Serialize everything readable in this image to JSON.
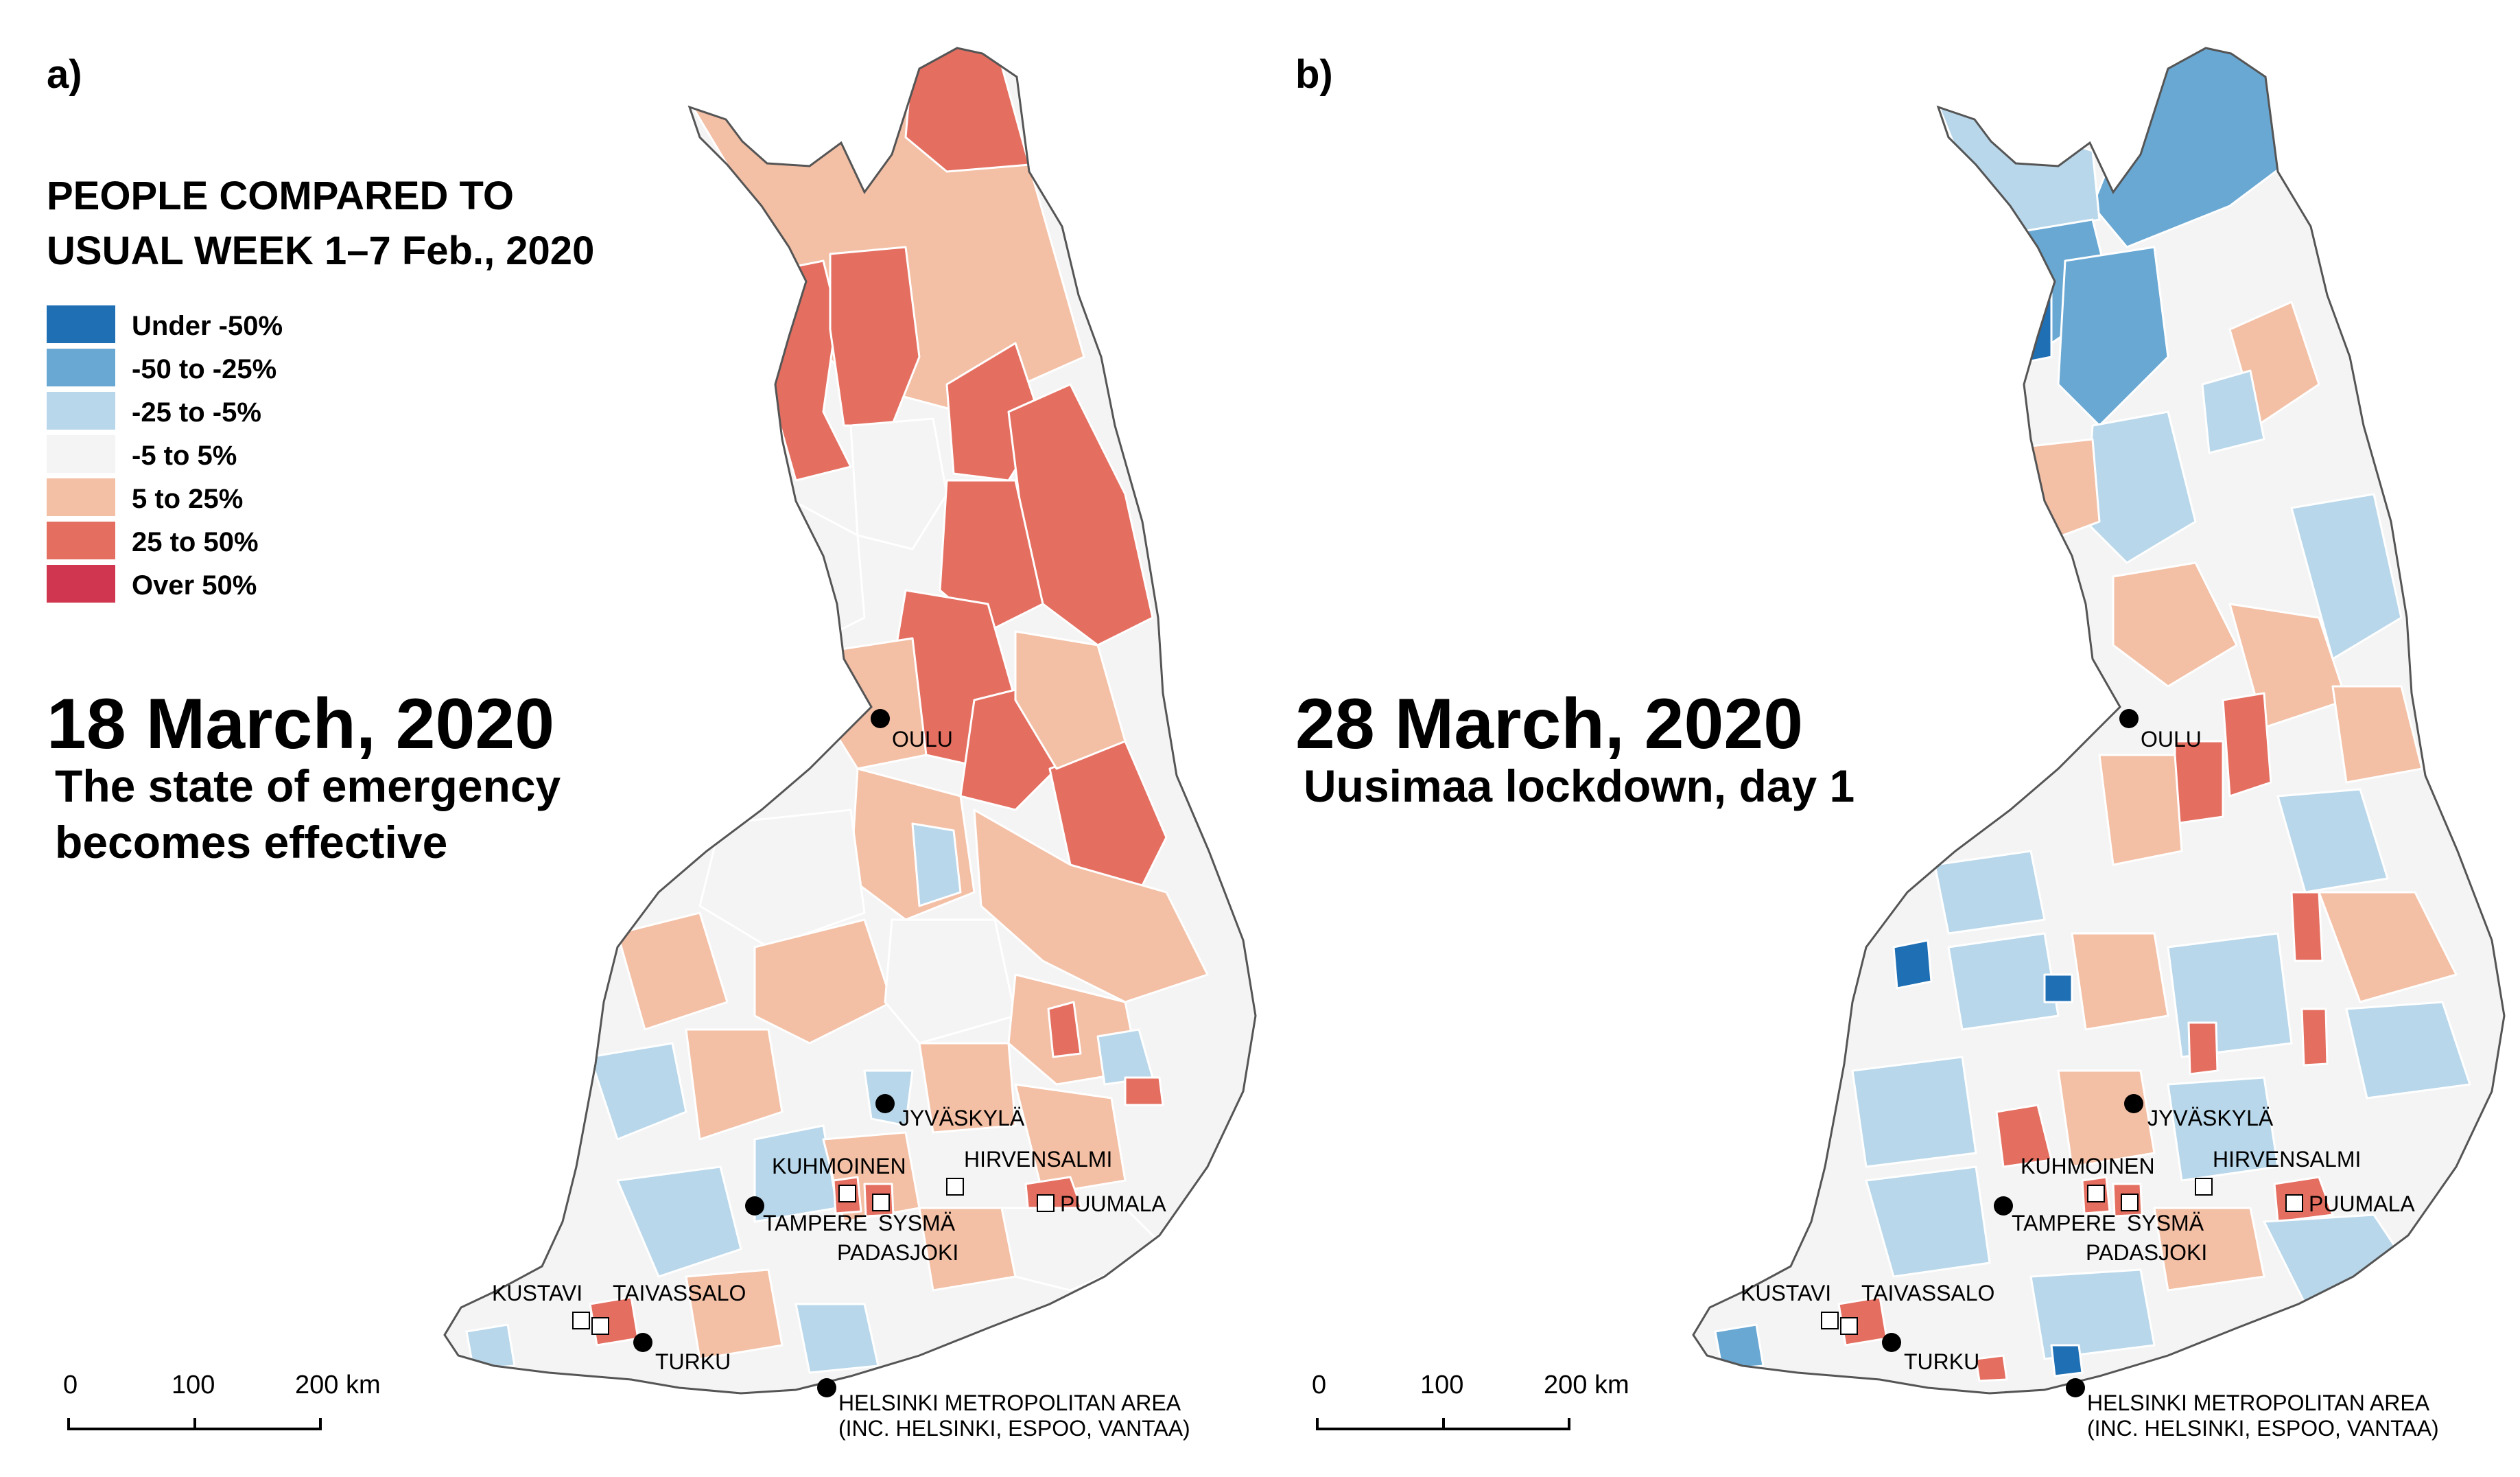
{
  "colors": {
    "under_-50": "#1f6fb4",
    "-50_to_-25": "#69a8d3",
    "-25_to_-5": "#b9d7ea",
    "-5_to_5": "#f4f4f4",
    "5_to_25": "#f3bfa5",
    "25_to_50": "#e46f61",
    "over_50": "#d0364f"
  },
  "legend": {
    "title_line1": "PEOPLE COMPARED TO",
    "title_line2": "USUAL WEEK 1–7 Feb., 2020",
    "items": [
      {
        "label": "Under -50%",
        "color": "#1f6fb4"
      },
      {
        "label": "-50 to -25%",
        "color": "#69a8d3"
      },
      {
        "label": "-25 to -5%",
        "color": "#b9d7ea"
      },
      {
        "label": "-5 to 5%",
        "color": "#f4f4f4"
      },
      {
        "label": "5 to 25%",
        "color": "#f3bfa5"
      },
      {
        "label": "25 to 50%",
        "color": "#e46f61"
      },
      {
        "label": "Over 50%",
        "color": "#d0364f"
      }
    ]
  },
  "panels": [
    {
      "label": "a)",
      "date": "18 March, 2020",
      "subtitle_line1": "The state of emergency",
      "subtitle_line2": "becomes effective"
    },
    {
      "label": "b)",
      "date": "28 March, 2020",
      "subtitle_line1": "Uusimaa lockdown, day 1",
      "subtitle_line2": ""
    }
  ],
  "places": {
    "oulu": "OULU",
    "jyvaskyla": "JYVÄSKYLÄ",
    "kuhmoinen": "KUHMOINEN",
    "hirvensalmi": "HIRVENSALMI",
    "tampere": "TAMPERE",
    "sysma": "SYSMÄ",
    "puumala": "PUUMALA",
    "padasjoki": "PADASJOKI",
    "kustavi": "KUSTAVI",
    "taivassalo": "TAIVASSALO",
    "turku": "TURKU",
    "helsinki_line1": "HELSINKI METROPOLITAN AREA",
    "helsinki_line2": "(INC. HELSINKI, ESPOO, VANTAA)"
  },
  "scale": {
    "tick0": "0",
    "tick1": "100",
    "tick2": "200 km"
  }
}
